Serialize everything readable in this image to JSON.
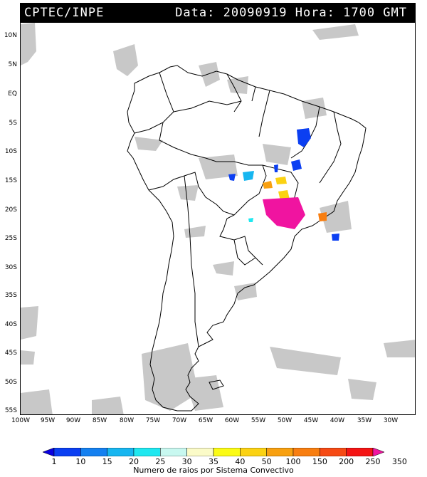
{
  "header": {
    "left": "CPTEC/INPE",
    "right": "Data: 20090919 Hora: 1700 GMT"
  },
  "lat_labels": [
    "10N",
    "5N",
    "EQ",
    "5S",
    "10S",
    "15S",
    "20S",
    "25S",
    "30S",
    "35S",
    "40S",
    "45S",
    "50S",
    "55S"
  ],
  "lon_labels": [
    "100W",
    "95W",
    "90W",
    "85W",
    "80W",
    "75W",
    "70W",
    "65W",
    "60W",
    "55W",
    "50W",
    "45W",
    "40W",
    "35W",
    "30W"
  ],
  "colorbar": {
    "ticks": [
      "1",
      "10",
      "15",
      "20",
      "25",
      "30",
      "35",
      "40",
      "50",
      "100",
      "150",
      "200",
      "250",
      "350"
    ],
    "colors": [
      "#0a00e0",
      "#0b3ff2",
      "#1480f0",
      "#17b6f0",
      "#1fe8f0",
      "#c8f8f0",
      "#fbfbc8",
      "#fbfb14",
      "#fbd212",
      "#f8a010",
      "#f87e10",
      "#f64a14",
      "#f41414",
      "#f014a0"
    ],
    "title": "Numero de raios por Sistema Convectivo"
  },
  "legend_colors": {
    "clouds": "#c8c8c8",
    "land_outline": "#000000"
  }
}
